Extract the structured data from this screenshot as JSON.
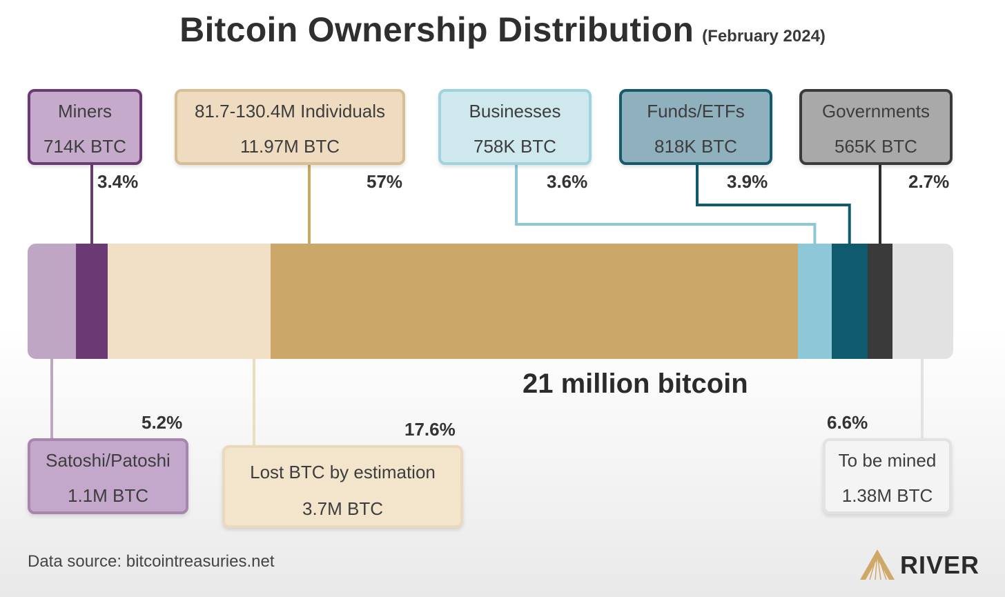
{
  "title": "Bitcoin Ownership Distribution",
  "subtitle": "(February 2024)",
  "total_label": "21 million bitcoin",
  "source": "Data source: bitcointreasuries.net",
  "brand": "RIVER",
  "chart_data": {
    "type": "bar",
    "stacked": true,
    "orientation": "horizontal",
    "total_btc": 21000000,
    "segments": [
      {
        "key": "satoshi",
        "name": "Satoshi/Patoshi",
        "amount": "1.1M BTC",
        "btc": 1100000,
        "percent": "5.2%",
        "value": 5.2,
        "color": "#c0a6c5",
        "label_pos": "below"
      },
      {
        "key": "miners",
        "name": "Miners",
        "amount": "714K BTC",
        "btc": 714000,
        "percent": "3.4%",
        "value": 3.4,
        "color": "#6b3a74",
        "label_pos": "above"
      },
      {
        "key": "lost",
        "name": "Lost BTC by estimation",
        "amount": "3.7M BTC",
        "btc": 3700000,
        "percent": "17.6%",
        "value": 17.6,
        "color": "#f0dfc4",
        "label_pos": "below"
      },
      {
        "key": "individuals",
        "name": "81.7-130.4M Individuals",
        "amount": "11.97M BTC",
        "btc": 11970000,
        "percent": "57%",
        "value": 57,
        "color": "#cca76a",
        "label_pos": "above"
      },
      {
        "key": "businesses",
        "name": "Businesses",
        "amount": "758K BTC",
        "btc": 758000,
        "percent": "3.6%",
        "value": 3.6,
        "color": "#8ec8d8",
        "label_pos": "above"
      },
      {
        "key": "funds",
        "name": "Funds/ETFs",
        "amount": "818K BTC",
        "btc": 818000,
        "percent": "3.9%",
        "value": 3.9,
        "color": "#105a6e",
        "label_pos": "above"
      },
      {
        "key": "governments",
        "name": "Governments",
        "amount": "565K BTC",
        "btc": 565000,
        "percent": "2.7%",
        "value": 2.7,
        "color": "#3a3a3a",
        "label_pos": "above"
      },
      {
        "key": "tobemined",
        "name": "To be mined",
        "amount": "1.38M BTC",
        "btc": 1380000,
        "percent": "6.6%",
        "value": 6.6,
        "color": "#e2e2e2",
        "label_pos": "below"
      }
    ]
  }
}
